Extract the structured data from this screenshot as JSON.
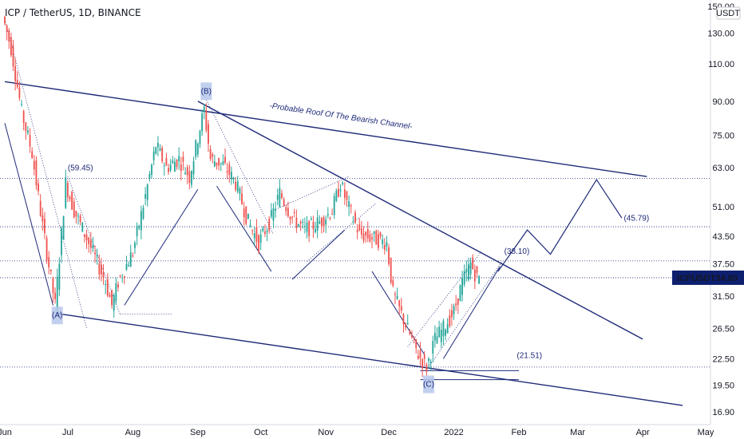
{
  "colors": {
    "navy": "#1e2a78",
    "up": "#26a69a",
    "down": "#ef5350",
    "wave_box": "#b7c8ec",
    "price_badge": "#0d1f6e",
    "badge_text": "#ffffff"
  },
  "chart_data": {
    "type": "candlestick",
    "title": "ICP / TetherUS, 1D, BINANCE",
    "currency": "USDT",
    "y_scale": "log",
    "ylim": [
      16.9,
      150.0
    ],
    "xlim": [
      "2021-06-01",
      "2022-05-01"
    ],
    "x_tick_labels": [
      {
        "label": "Jun",
        "date": "2021-06-01"
      },
      {
        "label": "Jul",
        "date": "2021-07-01"
      },
      {
        "label": "Aug",
        "date": "2021-08-01"
      },
      {
        "label": "Sep",
        "date": "2021-09-01"
      },
      {
        "label": "Oct",
        "date": "2021-10-01"
      },
      {
        "label": "Nov",
        "date": "2021-11-01"
      },
      {
        "label": "Dec",
        "date": "2021-12-01"
      },
      {
        "label": "2022",
        "date": "2022-01-01"
      },
      {
        "label": "Feb",
        "date": "2022-02-01"
      },
      {
        "label": "Mar",
        "date": "2022-03-01"
      },
      {
        "label": "Apr",
        "date": "2022-04-01"
      },
      {
        "label": "May",
        "date": "2022-05-01"
      }
    ],
    "y_tick_labels": [
      "150.00",
      "130.00",
      "110.00",
      "90.00",
      "75.00",
      "63.00",
      "51.00",
      "43.50",
      "37.50",
      "31.50",
      "26.50",
      "22.50",
      "19.50",
      "16.90"
    ],
    "y_ticks": [
      150,
      130,
      110,
      90,
      75,
      63,
      51,
      43.5,
      37.5,
      31.5,
      26.5,
      22.5,
      19.5,
      16.9
    ],
    "current_price": {
      "symbol": "ICPUSDT",
      "value": "34.80",
      "price": 34.8
    },
    "price_path": [
      [
        "2021-06-01",
        142
      ],
      [
        "2021-06-05",
        120
      ],
      [
        "2021-06-10",
        85
      ],
      [
        "2021-06-15",
        68
      ],
      [
        "2021-06-20",
        46
      ],
      [
        "2021-06-26",
        30
      ],
      [
        "2021-06-29",
        44
      ],
      [
        "2021-07-01",
        58
      ],
      [
        "2021-07-05",
        50
      ],
      [
        "2021-07-12",
        42
      ],
      [
        "2021-07-20",
        34
      ],
      [
        "2021-07-23",
        30
      ],
      [
        "2021-07-26",
        34
      ],
      [
        "2021-08-02",
        40
      ],
      [
        "2021-08-08",
        54
      ],
      [
        "2021-08-13",
        71
      ],
      [
        "2021-08-18",
        63
      ],
      [
        "2021-08-24",
        66
      ],
      [
        "2021-08-29",
        60
      ],
      [
        "2021-09-03",
        78
      ],
      [
        "2021-09-05",
        86
      ],
      [
        "2021-09-08",
        66
      ],
      [
        "2021-09-14",
        64
      ],
      [
        "2021-09-20",
        58
      ],
      [
        "2021-09-26",
        47
      ],
      [
        "2021-10-01",
        42
      ],
      [
        "2021-10-07",
        48
      ],
      [
        "2021-10-11",
        55
      ],
      [
        "2021-10-17",
        48
      ],
      [
        "2021-10-23",
        45
      ],
      [
        "2021-10-30",
        47
      ],
      [
        "2021-11-05",
        50
      ],
      [
        "2021-11-09",
        58
      ],
      [
        "2021-11-12",
        52
      ],
      [
        "2021-11-18",
        44
      ],
      [
        "2021-11-25",
        43
      ],
      [
        "2021-12-01",
        42
      ],
      [
        "2021-12-04",
        32
      ],
      [
        "2021-12-10",
        27
      ],
      [
        "2021-12-16",
        23
      ],
      [
        "2021-12-20",
        21.5
      ],
      [
        "2021-12-24",
        25
      ],
      [
        "2021-12-28",
        26.5
      ],
      [
        "2022-01-02",
        29
      ],
      [
        "2022-01-06",
        34
      ],
      [
        "2022-01-10",
        37.5
      ],
      [
        "2022-01-13",
        34.8
      ]
    ],
    "wave_labels": [
      {
        "label": "(A)",
        "date": "2021-06-26",
        "price": 28.4
      },
      {
        "label": "(B)",
        "date": "2021-09-05",
        "price": 95
      },
      {
        "label": "(C)",
        "date": "2021-12-20",
        "price": 19.6
      }
    ],
    "level_labels": [
      {
        "text": "(59.45)",
        "date": "2021-07-01",
        "price": 62
      },
      {
        "text": "(38.10)",
        "date": "2022-01-25",
        "price": 39.6
      },
      {
        "text": "(45.79)",
        "date": "2022-03-23",
        "price": 47.3
      },
      {
        "text": "(21.51)",
        "date": "2022-01-31",
        "price": 22.6
      }
    ],
    "trend_lines": [
      {
        "from": [
          "2021-06-01",
          100
        ],
        "to": [
          "2022-04-03",
          60
        ],
        "label": "-Probable Roof Of The Bearish Channel-",
        "label_at": [
          "2021-11-08",
          82
        ]
      },
      {
        "from": [
          "2021-06-26",
          28.7
        ],
        "to": [
          "2022-04-20",
          17.5
        ]
      },
      {
        "from": [
          "2021-09-01",
          90
        ],
        "to": [
          "2022-04-01",
          25
        ]
      }
    ],
    "projection_path": [
      [
        "2022-01-22",
        36
      ],
      [
        "2022-02-05",
        45
      ],
      [
        "2022-02-16",
        39.5
      ],
      [
        "2022-03-10",
        59
      ],
      [
        "2022-03-22",
        48
      ]
    ],
    "horizontal_levels": [
      59.45,
      45.79,
      38.1,
      34.8,
      21.51
    ]
  }
}
